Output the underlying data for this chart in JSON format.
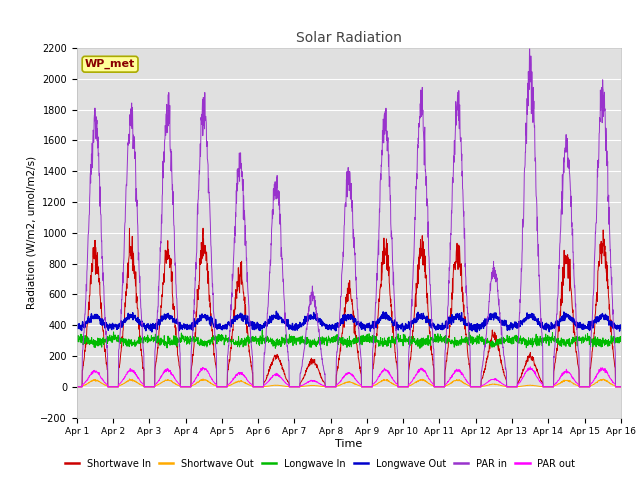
{
  "title": "Solar Radiation",
  "xlabel": "Time",
  "ylabel": "Radiation (W/m2, umol/m2/s)",
  "ylim": [
    -200,
    2200
  ],
  "yticks": [
    -200,
    0,
    200,
    400,
    600,
    800,
    1000,
    1200,
    1400,
    1600,
    1800,
    2000,
    2200
  ],
  "xtick_labels": [
    "Apr 1",
    "Apr 2",
    "Apr 3",
    "Apr 4",
    "Apr 5",
    "Apr 6",
    "Apr 7",
    "Apr 8",
    "Apr 9",
    "Apr 10",
    "Apr 11",
    "Apr 12",
    "Apr 13",
    "Apr 14",
    "Apr 15",
    "Apr 16"
  ],
  "background_color": "#e0e0e0",
  "fig_background": "#ffffff",
  "legend_entries": [
    {
      "label": "Shortwave In",
      "color": "#cc0000"
    },
    {
      "label": "Shortwave Out",
      "color": "#ffaa00"
    },
    {
      "label": "Longwave In",
      "color": "#00bb00"
    },
    {
      "label": "Longwave Out",
      "color": "#0000cc"
    },
    {
      "label": "PAR in",
      "color": "#9933cc"
    },
    {
      "label": "PAR out",
      "color": "#ff00ff"
    }
  ],
  "wp_met_label": "WP_met",
  "wp_met_color": "#880000",
  "wp_met_bg": "#ffff99",
  "wp_met_border": "#aaaa00",
  "sw_in_peaks": [
    870,
    870,
    870,
    930,
    730,
    200,
    170,
    620,
    870,
    900,
    860,
    330,
    200,
    820,
    940
  ],
  "par_in_peaks": [
    1730,
    1770,
    1780,
    1790,
    1450,
    1310,
    600,
    1360,
    1720,
    1820,
    1800,
    760,
    2050,
    1580,
    1900
  ],
  "par_out_peaks": [
    100,
    110,
    110,
    120,
    90,
    80,
    40,
    90,
    110,
    115,
    110,
    50,
    120,
    100,
    120
  ]
}
